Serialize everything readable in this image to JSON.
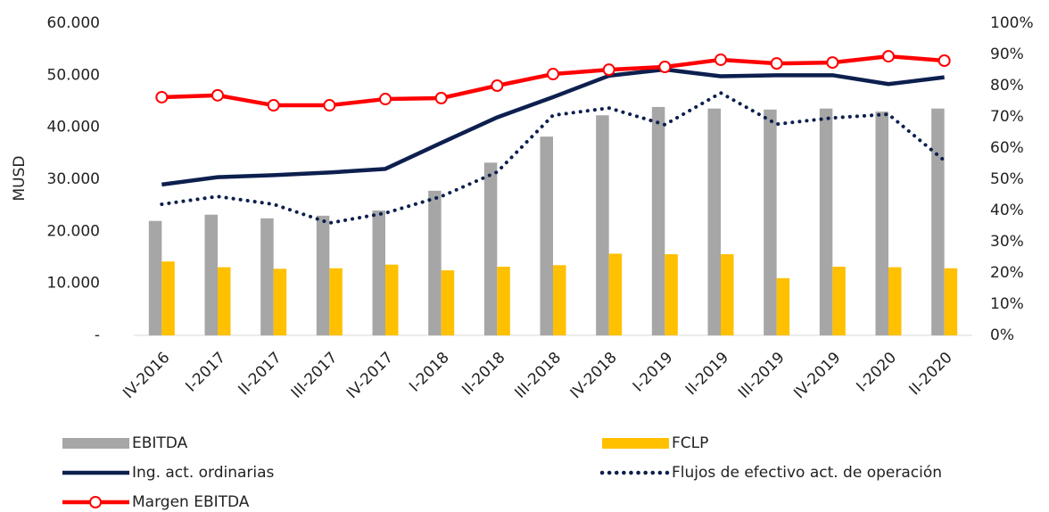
{
  "chart_data": {
    "type": "combo",
    "y_label": "MUSD",
    "categories": [
      "IV-2016",
      "I-2017",
      "II-2017",
      "III-2017",
      "IV-2017",
      "I-2018",
      "II-2018",
      "III-2018",
      "IV-2018",
      "I-2019",
      "II-2019",
      "III-2019",
      "IV-2019",
      "I-2020",
      "II-2020"
    ],
    "ylim": [
      0,
      60000
    ],
    "yticks": [
      {
        "value": 0,
        "label": "-"
      },
      {
        "value": 10000,
        "label": "10.000"
      },
      {
        "value": 20000,
        "label": "20.000"
      },
      {
        "value": 30000,
        "label": "30.000"
      },
      {
        "value": 40000,
        "label": "40.000"
      },
      {
        "value": 50000,
        "label": "50.000"
      },
      {
        "value": 60000,
        "label": "60.000"
      }
    ],
    "y2lim": [
      0,
      100
    ],
    "y2ticks": [
      {
        "value": 0,
        "label": "0%"
      },
      {
        "value": 10,
        "label": "10%"
      },
      {
        "value": 20,
        "label": "20%"
      },
      {
        "value": 30,
        "label": "30%"
      },
      {
        "value": 40,
        "label": "40%"
      },
      {
        "value": 50,
        "label": "50%"
      },
      {
        "value": 60,
        "label": "60%"
      },
      {
        "value": 70,
        "label": "70%"
      },
      {
        "value": 80,
        "label": "80%"
      },
      {
        "value": 90,
        "label": "90%"
      },
      {
        "value": 100,
        "label": "100%"
      }
    ],
    "series": [
      {
        "name": "EBITDA",
        "type": "bar",
        "color": "#a6a6a6",
        "values": [
          22000,
          23200,
          22500,
          23000,
          24000,
          27800,
          33200,
          38200,
          42300,
          43900,
          43600,
          43400,
          43600,
          43000,
          43600
        ]
      },
      {
        "name": "FCLP",
        "type": "bar",
        "color": "#ffc000",
        "values": [
          14200,
          13100,
          12800,
          12900,
          13600,
          12500,
          13200,
          13500,
          15700,
          15600,
          15600,
          11000,
          13200,
          13100,
          12900
        ]
      },
      {
        "name": "Ing. act. ordinarias",
        "type": "line",
        "color": "#0d1f4e",
        "line_style": "solid",
        "values": [
          29000,
          30400,
          30800,
          31300,
          32000,
          37000,
          41900,
          45800,
          49900,
          51100,
          49800,
          50000,
          50000,
          48300,
          49600
        ]
      },
      {
        "name": "Flujos de efectivo act. de operación",
        "type": "line",
        "color": "#0d1f4e",
        "line_style": "dotted",
        "values": [
          25200,
          26700,
          25200,
          21600,
          23500,
          26700,
          31400,
          42300,
          43700,
          40500,
          46600,
          40600,
          41800,
          42500,
          33600
        ]
      },
      {
        "name": "Margen EBITDA",
        "type": "line",
        "color": "#ff0000",
        "line_style": "solid",
        "marker": "circle",
        "axis": "y2",
        "values": [
          76.3,
          76.9,
          73.7,
          73.7,
          75.7,
          76.0,
          80.0,
          83.7,
          85.1,
          86.0,
          88.3,
          87.1,
          87.4,
          89.4,
          88.0
        ]
      }
    ]
  }
}
